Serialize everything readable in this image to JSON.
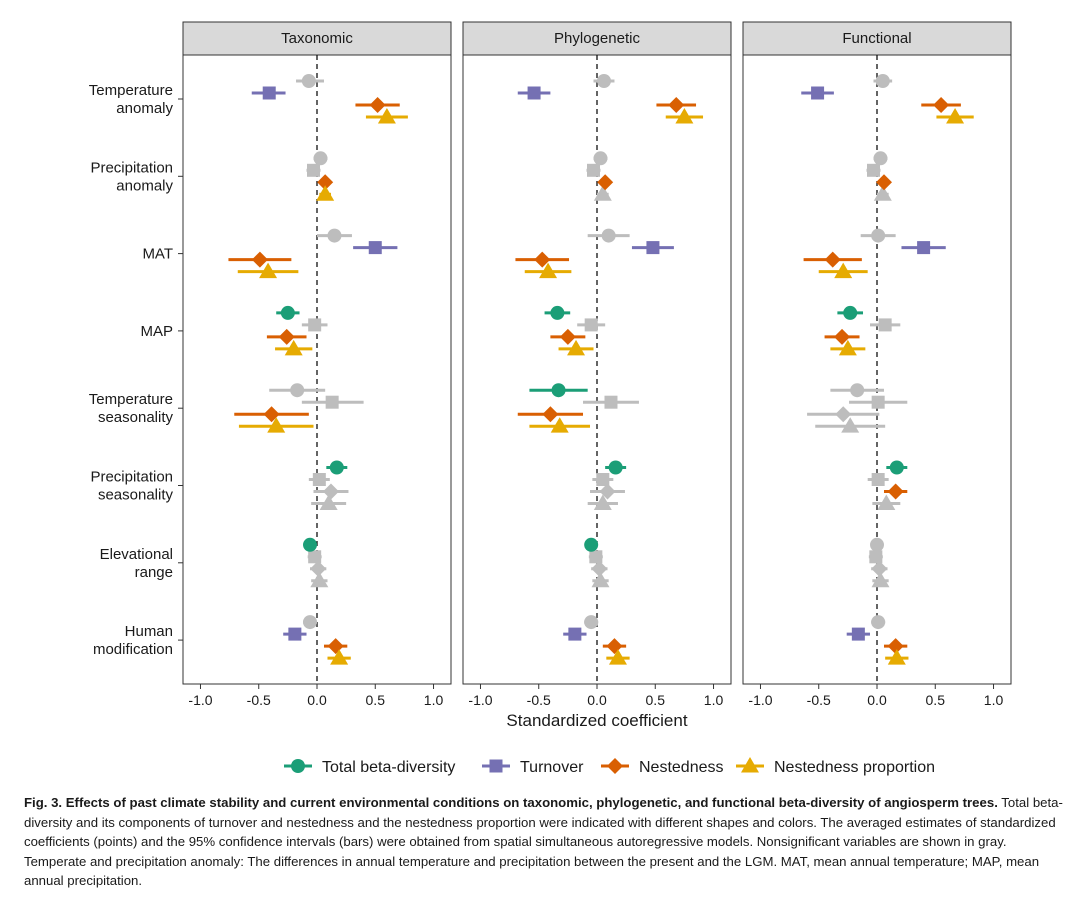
{
  "chart_data": {
    "type": "scatter",
    "subtype": "forest-plot",
    "xlabel": "Standardized coefficient",
    "xlim": [
      -1.15,
      1.15
    ],
    "xticks": [
      -1.0,
      -0.5,
      0.0,
      0.5,
      1.0
    ],
    "xtick_labels": [
      "-1.0",
      "-0.5",
      "0.0",
      "0.5",
      "1.0"
    ],
    "reference_line": {
      "x": 0,
      "style": "dashed"
    },
    "grid": false,
    "legend_position": "bottom",
    "panels": [
      "Taxonomic",
      "Phylogenetic",
      "Functional"
    ],
    "categories": [
      [
        "Temperature",
        "anomaly"
      ],
      [
        "Precipitation",
        "anomaly"
      ],
      [
        "MAT"
      ],
      [
        "MAP"
      ],
      [
        "Temperature",
        "seasonality"
      ],
      [
        "Precipitation",
        "seasonality"
      ],
      [
        "Elevational",
        "range"
      ],
      [
        "Human",
        "modification"
      ]
    ],
    "nonsignificant_color": "#bdbdbd",
    "series": [
      {
        "name": "Total beta-diversity",
        "shape": "circle",
        "color": "#1b9e77"
      },
      {
        "name": "Turnover",
        "shape": "square",
        "color": "#7570b3"
      },
      {
        "name": "Nestedness",
        "shape": "diamond",
        "color": "#d95f02"
      },
      {
        "name": "Nestedness proportion",
        "shape": "triangle",
        "color": "#e6ab02"
      }
    ],
    "data": {
      "Taxonomic": [
        [
          [
            -0.07,
            -0.18,
            0.06,
            false
          ],
          [
            -0.41,
            -0.56,
            -0.27,
            true
          ],
          [
            0.52,
            0.33,
            0.71,
            true
          ],
          [
            0.6,
            0.42,
            0.78,
            true
          ]
        ],
        [
          [
            0.03,
            -0.03,
            0.09,
            false
          ],
          [
            -0.03,
            -0.09,
            0.03,
            false
          ],
          [
            0.07,
            0.02,
            0.12,
            true
          ],
          [
            0.07,
            0.02,
            0.12,
            true
          ]
        ],
        [
          [
            0.15,
            0.0,
            0.3,
            false
          ],
          [
            0.5,
            0.31,
            0.69,
            true
          ],
          [
            -0.49,
            -0.76,
            -0.22,
            true
          ],
          [
            -0.42,
            -0.68,
            -0.16,
            true
          ]
        ],
        [
          [
            -0.25,
            -0.35,
            -0.15,
            true
          ],
          [
            -0.02,
            -0.13,
            0.09,
            false
          ],
          [
            -0.26,
            -0.43,
            -0.09,
            true
          ],
          [
            -0.2,
            -0.36,
            -0.04,
            true
          ]
        ],
        [
          [
            -0.17,
            -0.41,
            0.07,
            false
          ],
          [
            0.13,
            -0.13,
            0.4,
            false
          ],
          [
            -0.39,
            -0.71,
            -0.07,
            true
          ],
          [
            -0.35,
            -0.67,
            -0.03,
            true
          ]
        ],
        [
          [
            0.17,
            0.08,
            0.26,
            true
          ],
          [
            0.02,
            -0.07,
            0.11,
            false
          ],
          [
            0.12,
            -0.03,
            0.27,
            false
          ],
          [
            0.1,
            -0.05,
            0.25,
            false
          ]
        ],
        [
          [
            -0.06,
            -0.1,
            -0.02,
            true
          ],
          [
            -0.02,
            -0.08,
            0.04,
            false
          ],
          [
            0.01,
            -0.06,
            0.08,
            false
          ],
          [
            0.02,
            -0.05,
            0.09,
            false
          ]
        ],
        [
          [
            -0.06,
            -0.12,
            0.0,
            false
          ],
          [
            -0.19,
            -0.29,
            -0.09,
            true
          ],
          [
            0.16,
            0.06,
            0.26,
            true
          ],
          [
            0.19,
            0.09,
            0.29,
            true
          ]
        ]
      ],
      "Phylogenetic": [
        [
          [
            0.06,
            -0.03,
            0.15,
            false
          ],
          [
            -0.54,
            -0.68,
            -0.4,
            true
          ],
          [
            0.68,
            0.51,
            0.85,
            true
          ],
          [
            0.75,
            0.59,
            0.91,
            true
          ]
        ],
        [
          [
            0.03,
            -0.03,
            0.09,
            false
          ],
          [
            -0.03,
            -0.09,
            0.03,
            false
          ],
          [
            0.07,
            0.02,
            0.12,
            true
          ],
          [
            0.05,
            0.0,
            0.1,
            false
          ]
        ],
        [
          [
            0.1,
            -0.08,
            0.28,
            false
          ],
          [
            0.48,
            0.3,
            0.66,
            true
          ],
          [
            -0.47,
            -0.7,
            -0.24,
            true
          ],
          [
            -0.42,
            -0.62,
            -0.22,
            true
          ]
        ],
        [
          [
            -0.34,
            -0.45,
            -0.23,
            true
          ],
          [
            -0.05,
            -0.17,
            0.07,
            false
          ],
          [
            -0.25,
            -0.4,
            -0.1,
            true
          ],
          [
            -0.18,
            -0.33,
            -0.03,
            true
          ]
        ],
        [
          [
            -0.33,
            -0.58,
            -0.08,
            true
          ],
          [
            0.12,
            -0.12,
            0.36,
            false
          ],
          [
            -0.4,
            -0.68,
            -0.12,
            true
          ],
          [
            -0.32,
            -0.58,
            -0.06,
            true
          ]
        ],
        [
          [
            0.16,
            0.07,
            0.25,
            true
          ],
          [
            0.05,
            -0.04,
            0.14,
            false
          ],
          [
            0.09,
            -0.06,
            0.24,
            false
          ],
          [
            0.05,
            -0.08,
            0.18,
            false
          ]
        ],
        [
          [
            -0.05,
            -0.09,
            -0.01,
            true
          ],
          [
            -0.01,
            -0.07,
            0.05,
            false
          ],
          [
            0.02,
            -0.05,
            0.09,
            false
          ],
          [
            0.03,
            -0.04,
            0.1,
            false
          ]
        ],
        [
          [
            -0.05,
            -0.11,
            0.01,
            false
          ],
          [
            -0.19,
            -0.29,
            -0.09,
            true
          ],
          [
            0.15,
            0.05,
            0.25,
            true
          ],
          [
            0.18,
            0.08,
            0.28,
            true
          ]
        ]
      ],
      "Functional": [
        [
          [
            0.05,
            -0.03,
            0.13,
            false
          ],
          [
            -0.51,
            -0.65,
            -0.37,
            true
          ],
          [
            0.55,
            0.38,
            0.72,
            true
          ],
          [
            0.67,
            0.51,
            0.83,
            true
          ]
        ],
        [
          [
            0.03,
            -0.03,
            0.09,
            false
          ],
          [
            -0.03,
            -0.09,
            0.03,
            false
          ],
          [
            0.06,
            0.01,
            0.11,
            true
          ],
          [
            0.05,
            0.0,
            0.1,
            false
          ]
        ],
        [
          [
            0.01,
            -0.14,
            0.16,
            false
          ],
          [
            0.4,
            0.21,
            0.59,
            true
          ],
          [
            -0.38,
            -0.63,
            -0.13,
            true
          ],
          [
            -0.29,
            -0.5,
            -0.08,
            true
          ]
        ],
        [
          [
            -0.23,
            -0.34,
            -0.12,
            true
          ],
          [
            0.07,
            -0.06,
            0.2,
            false
          ],
          [
            -0.3,
            -0.45,
            -0.15,
            true
          ],
          [
            -0.25,
            -0.4,
            -0.1,
            true
          ]
        ],
        [
          [
            -0.17,
            -0.4,
            0.06,
            false
          ],
          [
            0.01,
            -0.24,
            0.26,
            false
          ],
          [
            -0.29,
            -0.6,
            0.02,
            false
          ],
          [
            -0.23,
            -0.53,
            0.07,
            false
          ]
        ],
        [
          [
            0.17,
            0.08,
            0.26,
            true
          ],
          [
            0.01,
            -0.08,
            0.1,
            false
          ],
          [
            0.16,
            0.06,
            0.26,
            true
          ],
          [
            0.08,
            -0.04,
            0.2,
            false
          ]
        ],
        [
          [
            0.0,
            -0.04,
            0.04,
            false
          ],
          [
            -0.01,
            -0.07,
            0.05,
            false
          ],
          [
            0.02,
            -0.05,
            0.09,
            false
          ],
          [
            0.03,
            -0.04,
            0.1,
            false
          ]
        ],
        [
          [
            0.01,
            -0.05,
            0.07,
            false
          ],
          [
            -0.16,
            -0.26,
            -0.06,
            true
          ],
          [
            0.16,
            0.06,
            0.26,
            true
          ],
          [
            0.17,
            0.07,
            0.27,
            true
          ]
        ]
      ]
    }
  },
  "caption": {
    "title": "Fig. 3. Effects of past climate stability and current environmental conditions on taxonomic, phylogenetic, and functional beta-diversity of angiosperm trees.",
    "body": "Total beta-diversity and its components of turnover and nestedness and the nestedness proportion were indicated with different shapes and colors. The averaged estimates of standardized coefficients (points) and the 95% confidence intervals (bars) were obtained from spatial simultaneous autoregressive models. Nonsignificant variables are shown in gray. Temperate and precipitation anomaly: The differences in annual temperature and precipitation between the present and the LGM. MAT, mean annual temperature; MAP, mean annual precipitation."
  }
}
